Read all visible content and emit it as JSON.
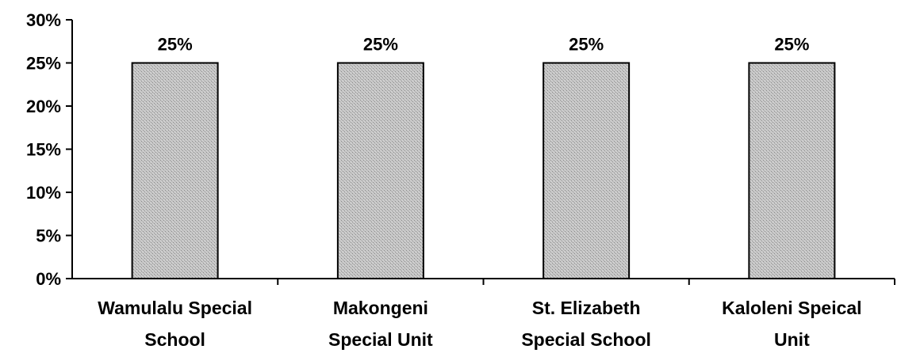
{
  "chart_data": {
    "type": "bar",
    "title": "",
    "xlabel": "",
    "ylabel": "",
    "categories": [
      [
        "Wamulalu Special",
        "School"
      ],
      [
        "Makongeni",
        "Special Unit"
      ],
      [
        "St. Elizabeth",
        "Special School"
      ],
      [
        "Kaloleni Speical",
        "Unit"
      ]
    ],
    "values": [
      25,
      25,
      25,
      25
    ],
    "data_labels": [
      "25%",
      "25%",
      "25%",
      "25%"
    ],
    "ylim": [
      0,
      30
    ],
    "yticks": [
      0,
      5,
      10,
      15,
      20,
      25,
      30
    ],
    "ytick_labels": [
      "0%",
      "5%",
      "10%",
      "15%",
      "20%",
      "25%",
      "30%"
    ],
    "grid": false,
    "legend": "none",
    "bar_fill": "#b8b8b8",
    "bar_stroke": "#000000",
    "axis_color": "#000000"
  }
}
